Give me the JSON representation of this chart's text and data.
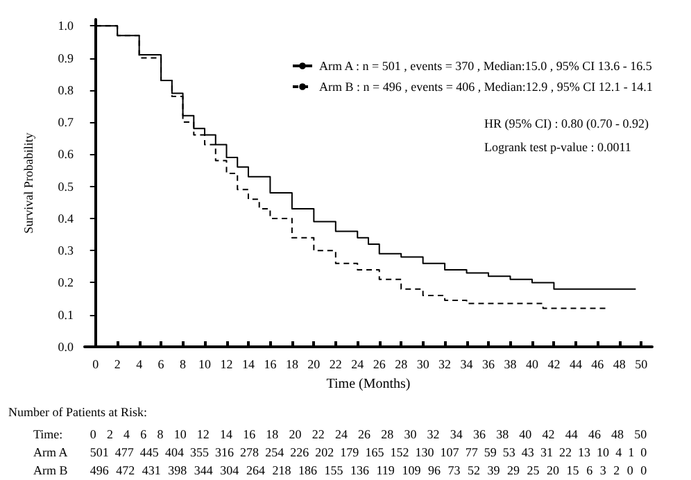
{
  "chart_data": {
    "type": "step",
    "xlabel": "Time (Months)",
    "ylabel": "Survival Probability",
    "xlim": [
      -1,
      51
    ],
    "xticks": [
      0,
      2,
      4,
      6,
      8,
      10,
      12,
      14,
      16,
      18,
      20,
      22,
      24,
      26,
      28,
      30,
      32,
      34,
      36,
      38,
      40,
      42,
      44,
      46,
      48,
      50
    ],
    "ylim": [
      0,
      1.02
    ],
    "yticks": [
      {
        "value": 0,
        "label": "0.0"
      },
      {
        "value": 0.1,
        "label": "0.1"
      },
      {
        "value": 0.2,
        "label": "0.2"
      },
      {
        "value": 0.3,
        "label": "0.3"
      },
      {
        "value": 0.4,
        "label": "0.4"
      },
      {
        "value": 0.5,
        "label": "0.5"
      },
      {
        "value": 0.6,
        "label": "0.6"
      },
      {
        "value": 0.7,
        "label": "0.7"
      },
      {
        "value": 0.8,
        "label": "0.8"
      },
      {
        "value": 0.9,
        "label": "0.9"
      },
      {
        "value": 1,
        "label": "1.0"
      }
    ],
    "series": [
      {
        "name": "Arm A : n = 501 , events = 370 , Median:15.0 , 95% CI 13.6 - 16.5",
        "color": "#000000",
        "line_style": "solid",
        "x": [
          0,
          2,
          4,
          6,
          7,
          8,
          9,
          10,
          11,
          12,
          13,
          14,
          16,
          18,
          20,
          22,
          24,
          25,
          26,
          28,
          30,
          32,
          34,
          36,
          38,
          40,
          42,
          49.5
        ],
        "values": [
          1,
          0.97,
          0.91,
          0.83,
          0.79,
          0.72,
          0.68,
          0.66,
          0.63,
          0.59,
          0.56,
          0.53,
          0.48,
          0.43,
          0.39,
          0.36,
          0.34,
          0.32,
          0.29,
          0.28,
          0.26,
          0.24,
          0.23,
          0.22,
          0.21,
          0.2,
          0.18,
          0.18
        ]
      },
      {
        "name": "Arm B : n = 496 , events = 406 , Median:12.9 , 95% CI 12.1 - 14.1",
        "color": "#000000",
        "line_style": "dashed",
        "x": [
          0,
          2,
          4,
          6,
          7,
          8,
          9,
          10,
          11,
          12,
          13,
          14,
          15,
          16,
          18,
          20,
          22,
          24,
          26,
          28,
          30,
          32,
          34,
          41,
          47
        ],
        "values": [
          1,
          0.97,
          0.9,
          0.83,
          0.78,
          0.7,
          0.66,
          0.63,
          0.58,
          0.54,
          0.49,
          0.46,
          0.43,
          0.4,
          0.34,
          0.3,
          0.26,
          0.24,
          0.21,
          0.18,
          0.16,
          0.145,
          0.135,
          0.12,
          0.12
        ]
      }
    ],
    "legend": "top right",
    "grid": false,
    "marker": "none",
    "annotations": [
      "HR (95% CI) : 0.80 (0.70 - 0.92)",
      "Logrank test p-value : 0.0011",
      "Number of Patients at Risk:",
      "Time:",
      "0 2 4 6 8 10 12 14 16 18 20 22 24 26 28 30 32 34 36 38 40 42 44 46 48 50",
      "Arm A",
      "501 477 445 404 355 316 278 254 226 202 179 165 152 130 107 77 59 53 43 31 22 13 10 4 1 0",
      "Arm B",
      "496 472 431 398 344 304 264 218 186 155 136 119 109 96 73 52 39 29 25 20 15 6 3 2 0 0"
    ]
  }
}
